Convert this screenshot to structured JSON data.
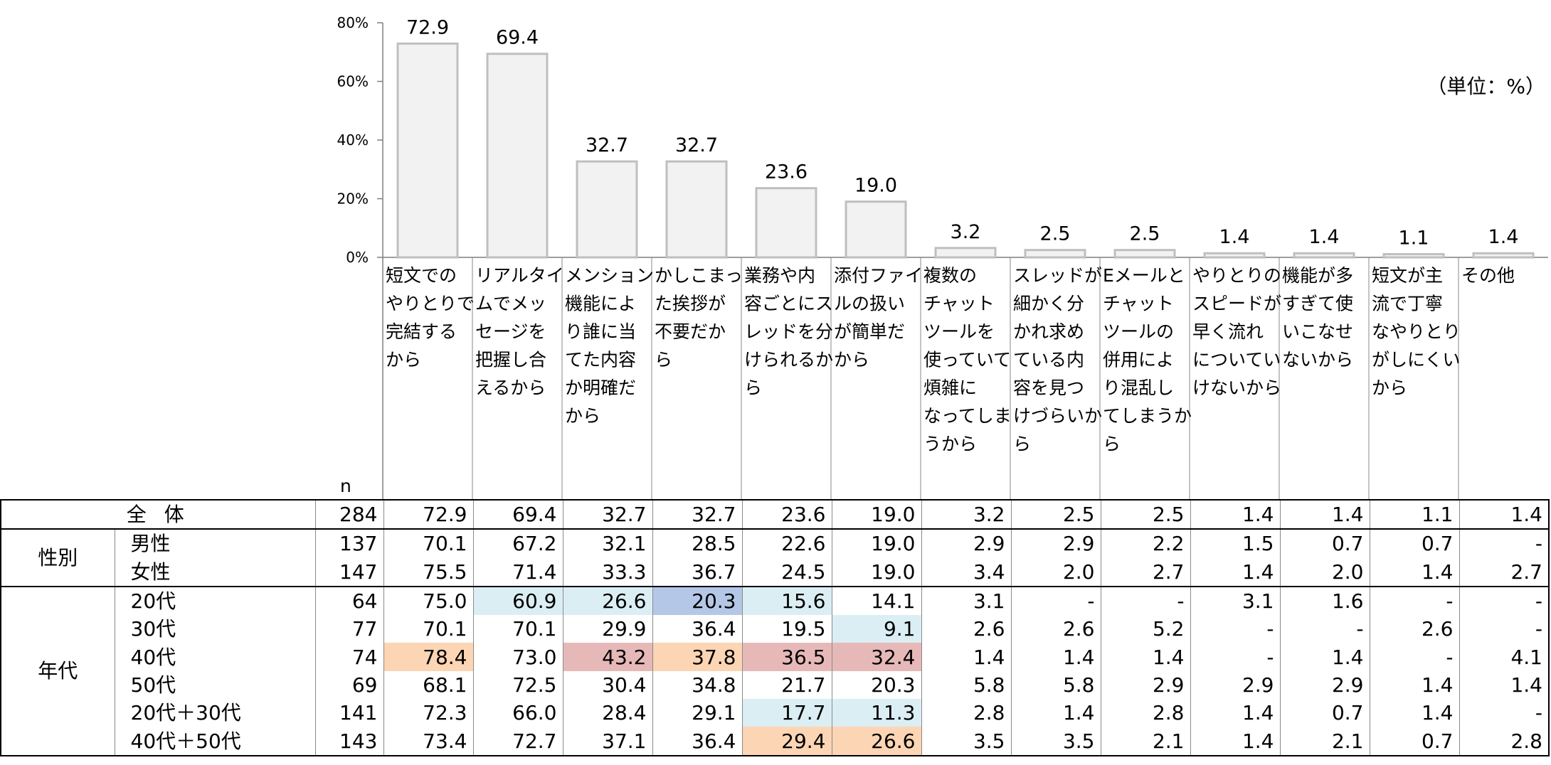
{
  "chart_data": {
    "type": "bar",
    "unit_note": "（単位：%）",
    "n_label": "n",
    "yticks": [
      "0%",
      "20%",
      "40%",
      "60%",
      "80%"
    ],
    "ylim": [
      0,
      80
    ],
    "categories": [
      [
        "短文での",
        "やりとりで",
        "完結する",
        "から"
      ],
      [
        "リアルタイ",
        "ムでメッ",
        "セージを",
        "把握し合",
        "えるから"
      ],
      [
        "メンション",
        "機能によ",
        "り誰に当",
        "てた内容",
        "か明確だ",
        "から"
      ],
      [
        "かしこまっ",
        "た挨拶が",
        "不要だか",
        "ら"
      ],
      [
        "業務や内",
        "容ごとにス",
        "レッドを分",
        "けられるか",
        "ら"
      ],
      [
        "添付ファイ",
        "ルの扱い",
        "が簡単だ",
        "から"
      ],
      [
        "複数の",
        "チャット",
        "ツールを",
        "使っていて",
        "煩雑に",
        "なってしま",
        "うから"
      ],
      [
        "スレッドが",
        "細かく分",
        "かれ求め",
        "ている内",
        "容を見つ",
        "けづらいか",
        "ら"
      ],
      [
        "Eメールと",
        "チャット",
        "ツールの",
        "併用によ",
        "り混乱し",
        "てしまうか",
        "ら"
      ],
      [
        "やりとりの",
        "スピードが",
        "早く流れ",
        "についてい",
        "けないから"
      ],
      [
        "機能が多",
        "すぎて使",
        "いこなせ",
        "ないから"
      ],
      [
        "短文が主",
        "流で丁寧",
        "なやりとり",
        "がしにくい",
        "から"
      ],
      [
        "その他"
      ]
    ],
    "values": [
      72.9,
      69.4,
      32.7,
      32.7,
      23.6,
      19.0,
      3.2,
      2.5,
      2.5,
      1.4,
      1.4,
      1.1,
      1.4
    ],
    "value_labels": [
      "72.9",
      "69.4",
      "32.7",
      "32.7",
      "23.6",
      "19.0",
      "3.2",
      "2.5",
      "2.5",
      "1.4",
      "1.4",
      "1.1",
      "1.4"
    ]
  },
  "table": {
    "rows": [
      {
        "group": "",
        "label": "全 体",
        "n": "284",
        "values": [
          "72.9",
          "69.4",
          "32.7",
          "32.7",
          "23.6",
          "19.0",
          "3.2",
          "2.5",
          "2.5",
          "1.4",
          "1.4",
          "1.1",
          "1.4"
        ],
        "hl": []
      },
      {
        "group": "性別",
        "label": "男性",
        "n": "137",
        "values": [
          "70.1",
          "67.2",
          "32.1",
          "28.5",
          "22.6",
          "19.0",
          "2.9",
          "2.9",
          "2.2",
          "1.5",
          "0.7",
          "0.7",
          "-"
        ],
        "hl": []
      },
      {
        "group": "",
        "label": "女性",
        "n": "147",
        "values": [
          "75.5",
          "71.4",
          "33.3",
          "36.7",
          "24.5",
          "19.0",
          "3.4",
          "2.0",
          "2.7",
          "1.4",
          "2.0",
          "1.4",
          "2.7"
        ],
        "hl": []
      },
      {
        "group": "年代",
        "label": "20代",
        "n": "64",
        "values": [
          "75.0",
          "60.9",
          "26.6",
          "20.3",
          "15.6",
          "14.1",
          "3.1",
          "-",
          "-",
          "3.1",
          "1.6",
          "-",
          "-"
        ],
        "hl": [
          [
            "1",
            "lb"
          ],
          [
            "2",
            "lb"
          ],
          [
            "3",
            "mb"
          ],
          [
            "4",
            "lb"
          ]
        ]
      },
      {
        "group": "",
        "label": "30代",
        "n": "77",
        "values": [
          "70.1",
          "70.1",
          "29.9",
          "36.4",
          "19.5",
          "9.1",
          "2.6",
          "2.6",
          "5.2",
          "-",
          "-",
          "2.6",
          "-"
        ],
        "hl": [
          [
            "5",
            "lb"
          ]
        ]
      },
      {
        "group": "",
        "label": "40代",
        "n": "74",
        "values": [
          "78.4",
          "73.0",
          "43.2",
          "37.8",
          "36.5",
          "32.4",
          "1.4",
          "1.4",
          "1.4",
          "-",
          "1.4",
          "-",
          "4.1"
        ],
        "hl": [
          [
            "0",
            "or"
          ],
          [
            "2",
            "pk"
          ],
          [
            "3",
            "or"
          ],
          [
            "4",
            "pk"
          ],
          [
            "5",
            "pk"
          ]
        ]
      },
      {
        "group": "",
        "label": "50代",
        "n": "69",
        "values": [
          "68.1",
          "72.5",
          "30.4",
          "34.8",
          "21.7",
          "20.3",
          "5.8",
          "5.8",
          "2.9",
          "2.9",
          "2.9",
          "1.4",
          "1.4"
        ],
        "hl": []
      },
      {
        "group": "",
        "label": "20代＋30代",
        "n": "141",
        "values": [
          "72.3",
          "66.0",
          "28.4",
          "29.1",
          "17.7",
          "11.3",
          "2.8",
          "1.4",
          "2.8",
          "1.4",
          "0.7",
          "1.4",
          "-"
        ],
        "hl": [
          [
            "4",
            "lb"
          ],
          [
            "5",
            "lb"
          ]
        ]
      },
      {
        "group": "",
        "label": "40代＋50代",
        "n": "143",
        "values": [
          "73.4",
          "72.7",
          "37.1",
          "36.4",
          "29.4",
          "26.6",
          "3.5",
          "3.5",
          "2.1",
          "1.4",
          "2.1",
          "0.7",
          "2.8"
        ],
        "hl": [
          [
            "4",
            "or"
          ],
          [
            "5",
            "or"
          ]
        ]
      }
    ],
    "colors": {
      "lb": "#dbeef4",
      "mb": "#b4c7e7",
      "pk": "#e6b9b8",
      "or": "#fcd5b4",
      "bar_fill": "#f2f2f2",
      "bar_stroke": "#bfbfbf"
    }
  }
}
